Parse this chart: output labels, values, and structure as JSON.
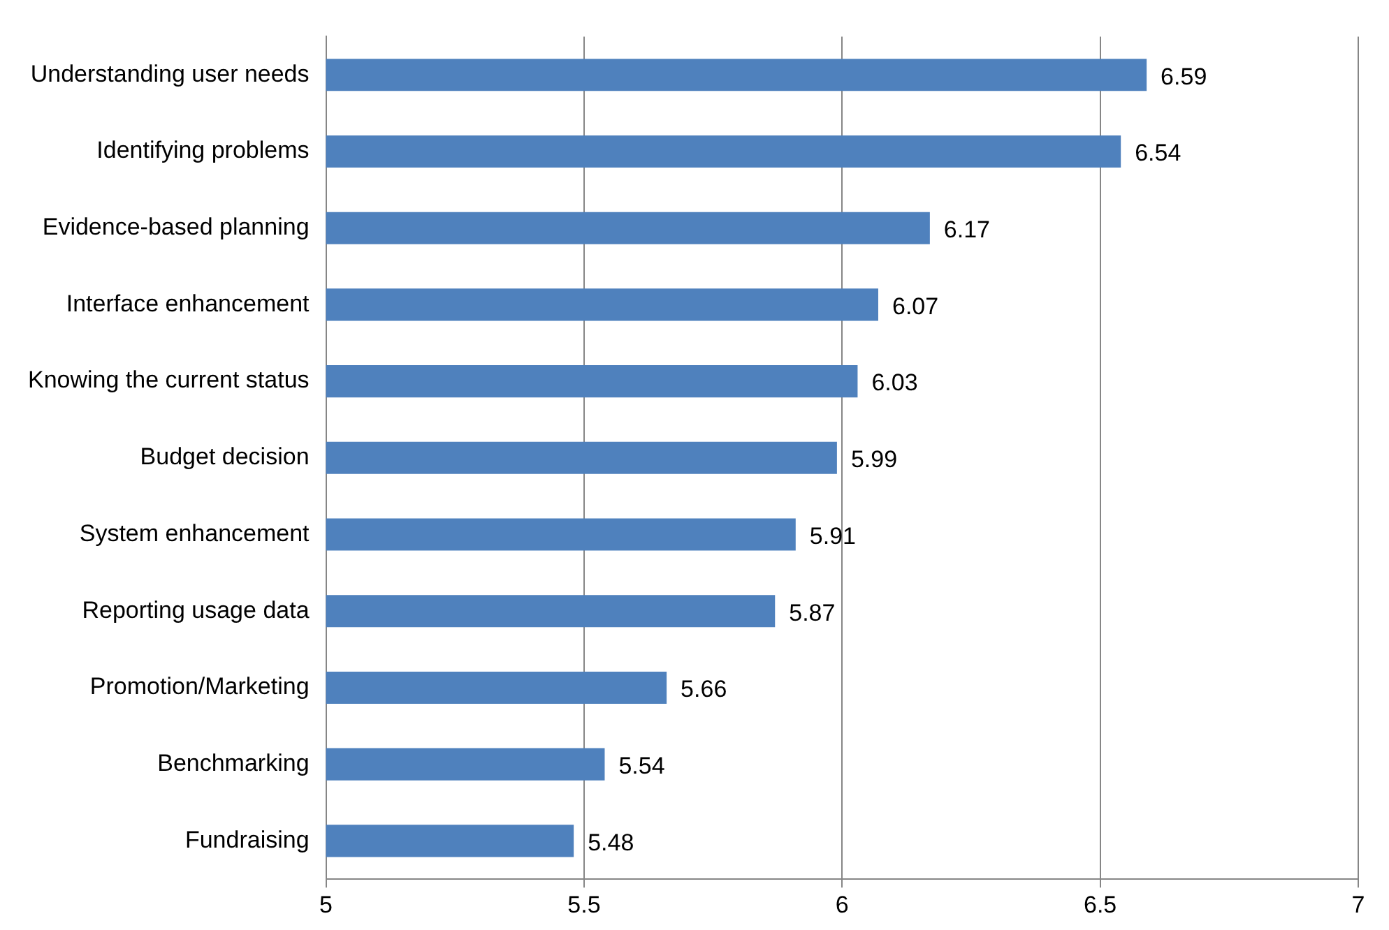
{
  "chart_data": {
    "type": "bar",
    "orientation": "horizontal",
    "categories": [
      "Understanding user needs",
      "Identifying problems",
      "Evidence-based planning",
      "Interface enhancement",
      "Knowing the current status",
      "Budget decision",
      "System enhancement",
      "Reporting usage data",
      "Promotion/Marketing",
      "Benchmarking",
      "Fundraising"
    ],
    "values": [
      6.59,
      6.54,
      6.17,
      6.07,
      6.03,
      5.99,
      5.91,
      5.87,
      5.66,
      5.54,
      5.48
    ],
    "color": "#4f81bd",
    "xlim": [
      5,
      7
    ],
    "xticks": [
      5,
      5.5,
      6,
      6.5,
      7
    ],
    "grid": "x",
    "data_labels": true
  }
}
